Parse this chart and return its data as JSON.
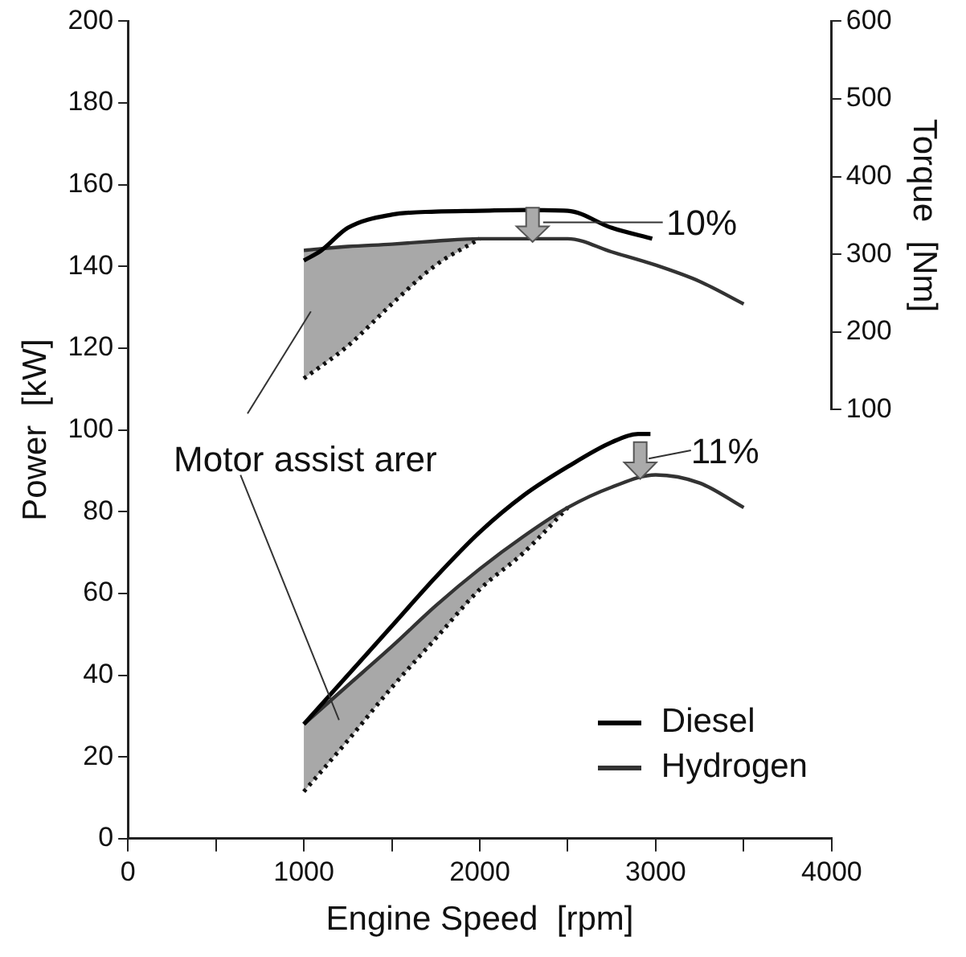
{
  "chart_data": {
    "type": "line",
    "xlabel": "Engine Speed  [rpm]",
    "ylabel": "Power  [kW]",
    "y2label": "Torque  [Nm]",
    "annotations": [
      "Motor assist arer",
      "10%",
      "11%"
    ],
    "xlim": [
      0,
      4000
    ],
    "xticks": [
      0,
      {
        "value": 500,
        "label": null
      },
      1000,
      {
        "value": 1500,
        "label": null
      },
      2000,
      {
        "value": 2500,
        "label": null
      },
      3000,
      {
        "value": 3500,
        "label": null
      },
      4000
    ],
    "ylim": [
      0,
      200
    ],
    "yticks": [
      0,
      20,
      40,
      60,
      80,
      100,
      120,
      140,
      160,
      180,
      200
    ],
    "y2lim": [
      100,
      600
    ],
    "y2ticks": [
      100,
      200,
      300,
      400,
      500,
      600
    ],
    "grid": false,
    "legend": "bottom right",
    "marker": "none",
    "line_style": "solid",
    "series": [
      {
        "name": "Diesel",
        "color": "#000000",
        "x": [
          1000,
          1250,
          1500,
          1750,
          2000,
          2250,
          2500,
          2750,
          2900,
          2970
        ],
        "values": [
          28,
          40,
          52,
          64,
          75,
          84,
          91,
          97,
          99,
          99
        ]
      },
      {
        "name": "Hydrogen",
        "color": "#333333",
        "x": [
          1000,
          1250,
          1500,
          1750,
          2000,
          2250,
          2500,
          2750,
          3000,
          3250,
          3500
        ],
        "values": [
          28,
          37.5,
          47,
          57,
          66,
          74,
          81,
          86,
          89,
          87,
          81
        ],
        "lower": [
          11.5,
          24,
          37,
          49,
          61,
          70,
          81,
          null,
          null,
          null,
          null
        ],
        "upper": [
          28,
          37.5,
          47,
          57,
          66,
          74,
          81,
          null,
          null,
          null,
          null
        ]
      },
      {
        "color": "#111111",
        "line_style": "dotted",
        "x": [
          1000,
          1250,
          1500,
          1750,
          2000,
          2250,
          2500
        ],
        "values": [
          11.5,
          24,
          37,
          49,
          61,
          70,
          81
        ]
      },
      {
        "color": "#000000",
        "axis": "y2",
        "x": [
          1000,
          1100,
          1250,
          1500,
          1750,
          2000,
          2250,
          2500,
          2750,
          2980
        ],
        "values": [
          292,
          305,
          334,
          351,
          355,
          356,
          357,
          356,
          334,
          320
        ]
      },
      {
        "color": "#333333",
        "axis": "y2",
        "x": [
          1000,
          1250,
          1500,
          1750,
          2000,
          2250,
          2500,
          2750,
          3000,
          3250,
          3500
        ],
        "values": [
          305,
          310,
          313,
          317,
          320,
          320,
          320,
          303,
          286,
          265,
          236
        ],
        "lower": [
          140,
          182,
          236,
          286,
          320,
          null,
          null,
          null,
          null,
          null,
          null
        ],
        "upper": [
          305,
          310,
          313,
          317,
          320,
          null,
          null,
          null,
          null,
          null,
          null
        ]
      },
      {
        "color": "#111111",
        "line_style": "dotted",
        "axis": "y2",
        "x": [
          1000,
          1250,
          1500,
          1750,
          2000
        ],
        "values": [
          140,
          182,
          236,
          286,
          320
        ]
      }
    ]
  }
}
